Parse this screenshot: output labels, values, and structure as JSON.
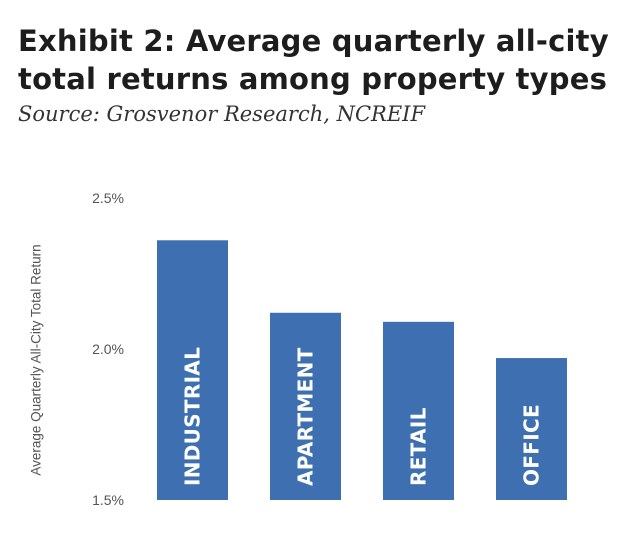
{
  "header": {
    "title": "Exhibit 2: Average quarterly all-city total returns among property types",
    "subtitle": "Source: Grosvenor Research, NCREIF"
  },
  "colors": {
    "bar": "#3d6fb1",
    "title": "#1d1d1d"
  },
  "chart_data": {
    "type": "bar",
    "title": "Exhibit 2: Average quarterly all-city total returns among property types",
    "subtitle": "Source: Grosvenor Research, NCREIF",
    "ylabel": "Average Quarterly All-City Total Return",
    "xlabel": "",
    "categories": [
      "INDUSTRIAL",
      "APARTMENT",
      "RETAIL",
      "OFFICE"
    ],
    "values": [
      2.36,
      2.12,
      2.09,
      1.97
    ],
    "unit": "%",
    "ylim": [
      1.5,
      2.5
    ],
    "yticks": [
      {
        "value": 1.5,
        "label": "1.5%"
      },
      {
        "value": 2.0,
        "label": "2.0%"
      },
      {
        "value": 2.5,
        "label": "2.5%"
      }
    ],
    "grid": false,
    "legend": "none",
    "category_labels_inside_bars": true
  }
}
